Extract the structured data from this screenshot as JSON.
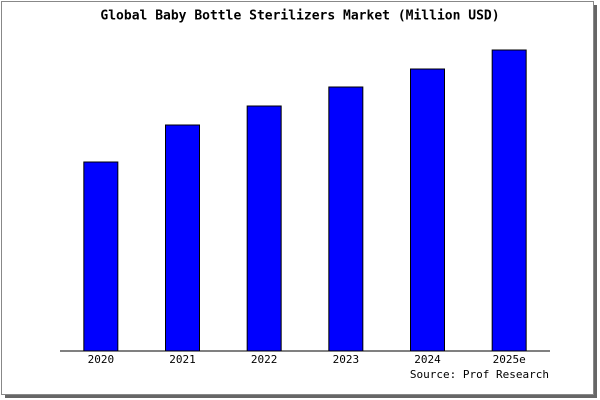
{
  "chart_data": {
    "type": "bar",
    "title": "Global Baby Bottle Sterilizers Market (Million USD)",
    "categories": [
      "2020",
      "2021",
      "2022",
      "2023",
      "2024",
      "2025e"
    ],
    "values": [
      189,
      226,
      245,
      264,
      282,
      301
    ],
    "color": "#0000ff",
    "ylim": [
      0,
      303
    ],
    "source": "Source: Prof Research"
  }
}
